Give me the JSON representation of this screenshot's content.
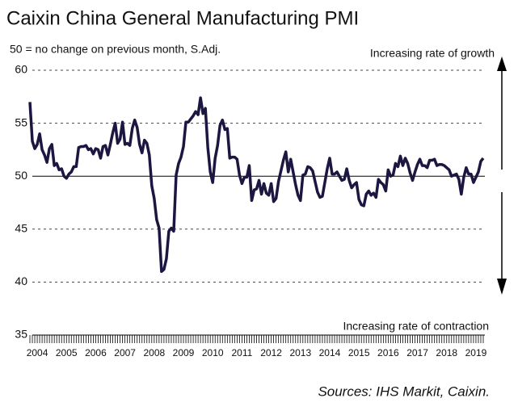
{
  "chart_data": {
    "type": "line",
    "title": "Caixin China General Manufacturing PMI",
    "subtitle": "50 = no change on previous month, S.Adj.",
    "annotations": [
      "Increasing rate of growth",
      "Increasing rate of contraction"
    ],
    "source": "Sources: IHS Markit, Caixin.",
    "categories": [
      null,
      null,
      null,
      "2004",
      null,
      null,
      null,
      null,
      null,
      null,
      null,
      null,
      null,
      null,
      null,
      "2005",
      null,
      null,
      null,
      null,
      null,
      null,
      null,
      null,
      null,
      null,
      null,
      "2006",
      null,
      null,
      null,
      null,
      null,
      null,
      null,
      null,
      null,
      null,
      null,
      "2007",
      null,
      null,
      null,
      null,
      null,
      null,
      null,
      null,
      null,
      null,
      null,
      "2008",
      null,
      null,
      null,
      null,
      null,
      null,
      null,
      null,
      null,
      null,
      null,
      "2009",
      null,
      null,
      null,
      null,
      null,
      null,
      null,
      null,
      null,
      null,
      null,
      "2010",
      null,
      null,
      null,
      null,
      null,
      null,
      null,
      null,
      null,
      null,
      null,
      "2011",
      null,
      null,
      null,
      null,
      null,
      null,
      null,
      null,
      null,
      null,
      null,
      "2012",
      null,
      null,
      null,
      null,
      null,
      null,
      null,
      null,
      null,
      null,
      null,
      "2013",
      null,
      null,
      null,
      null,
      null,
      null,
      null,
      null,
      null,
      null,
      null,
      "2014",
      null,
      null,
      null,
      null,
      null,
      null,
      null,
      null,
      null,
      null,
      null,
      "2015",
      null,
      null,
      null,
      null,
      null,
      null,
      null,
      null,
      null,
      null,
      null,
      "2016",
      null,
      null,
      null,
      null,
      null,
      null,
      null,
      null,
      null,
      null,
      null,
      "2017",
      null,
      null,
      null,
      null,
      null,
      null,
      null,
      null,
      null,
      null,
      null,
      "2018",
      null,
      null,
      null,
      null,
      null,
      null,
      null,
      null,
      null,
      null,
      null,
      "2019",
      null,
      null,
      null
    ],
    "series": [
      {
        "name": "PMI",
        "color": "#1c1740",
        "values": [
          57.0,
          53.3,
          52.6,
          53.0,
          54.0,
          52.5,
          52.0,
          51.3,
          52.6,
          53.0,
          51.0,
          51.2,
          50.6,
          50.7,
          50.0,
          49.8,
          50.2,
          50.4,
          50.9,
          50.9,
          52.7,
          52.8,
          52.8,
          52.9,
          52.5,
          52.6,
          52.1,
          52.6,
          52.5,
          51.7,
          52.8,
          52.9,
          52.0,
          53.0,
          54.1,
          55.0,
          53.1,
          53.5,
          55.1,
          53.0,
          53.1,
          52.9,
          54.5,
          55.3,
          54.6,
          53.0,
          52.2,
          53.4,
          53.1,
          52.0,
          49.1,
          47.9,
          45.9,
          45.1,
          41.0,
          41.2,
          42.2,
          44.8,
          45.1,
          44.8,
          50.1,
          51.2,
          51.8,
          52.8,
          55.1,
          55.1,
          55.4,
          55.7,
          56.1,
          55.8,
          57.4,
          55.9,
          56.4,
          52.7,
          50.4,
          49.4,
          51.7,
          52.9,
          54.8,
          55.3,
          54.4,
          54.5,
          51.7,
          51.8,
          51.8,
          51.6,
          50.1,
          49.3,
          49.9,
          49.9,
          51.0,
          47.7,
          48.7,
          48.8,
          49.6,
          48.3,
          49.3,
          48.4,
          48.2,
          49.3,
          47.6,
          47.9,
          49.5,
          50.5,
          51.5,
          52.3,
          50.4,
          51.6,
          50.4,
          49.2,
          48.2,
          47.7,
          50.1,
          50.2,
          50.9,
          50.8,
          50.5,
          49.5,
          48.5,
          48.0,
          48.1,
          49.4,
          50.7,
          51.7,
          50.2,
          50.2,
          50.4,
          50.0,
          49.6,
          49.7,
          50.7,
          49.6,
          48.9,
          49.2,
          49.4,
          47.8,
          47.3,
          47.2,
          48.3,
          48.6,
          48.2,
          48.4,
          48.0,
          49.7,
          49.4,
          49.2,
          48.6,
          50.6,
          50.0,
          50.1,
          51.2,
          50.9,
          51.9,
          51.0,
          51.7,
          51.2,
          50.3,
          49.6,
          50.4,
          51.1,
          51.6,
          51.0,
          51.0,
          50.8,
          51.5,
          51.5,
          51.6,
          51.0,
          51.1,
          51.1,
          51.0,
          50.8,
          50.6,
          50.0,
          50.1,
          50.2,
          49.7,
          48.3,
          49.9,
          50.8,
          50.2,
          50.2,
          49.4,
          49.9,
          50.4,
          51.4,
          51.7
        ]
      }
    ],
    "ylim": [
      35,
      60
    ],
    "yticks": [
      35,
      40,
      45,
      50,
      55,
      60
    ],
    "grid": true,
    "reference_line": 50
  }
}
